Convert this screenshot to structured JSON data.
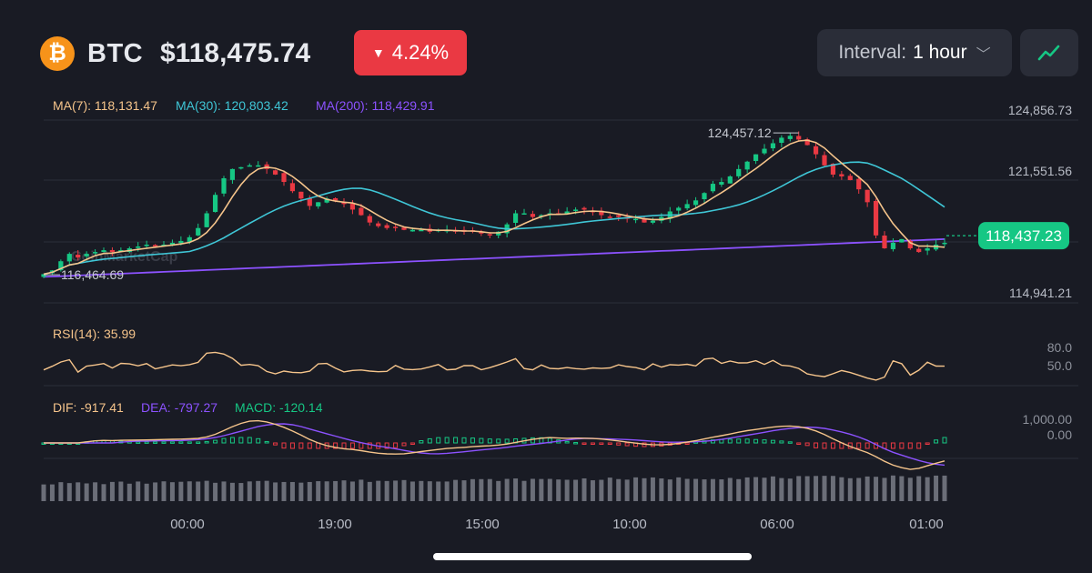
{
  "header": {
    "coin_icon": "bitcoin-icon",
    "coin_letter": "₿",
    "symbol": "BTC",
    "price": "$118,475.74",
    "change": "4.24%",
    "change_direction": "down",
    "change_color": "#ea3943",
    "interval_label": "Interval:",
    "interval_value": "1 hour",
    "chart_type_icon": "line-chart-icon"
  },
  "indicators": {
    "ma7": "MA(7): 118,131.47",
    "ma30": "MA(30): 120,803.42",
    "ma200": "MA(200): 118,429.91",
    "rsi": "RSI(14): 35.99",
    "dif": "DIF: -917.41",
    "dea": "DEA: -797.27",
    "macd": "MACD: -120.14"
  },
  "colors": {
    "up": "#16c784",
    "down": "#ea3943",
    "ma7": "#f5c48b",
    "ma30": "#3fc6d6",
    "ma200": "#8c52ff",
    "rsi": "#f5c48b",
    "volume": "#6b6e78"
  },
  "watermark": "CoinMarketCap",
  "chart_data": {
    "type": "candlestick",
    "x_ticks": [
      "00:00",
      "19:00",
      "15:00",
      "10:00",
      "06:00",
      "01:00"
    ],
    "y_ticks": [
      124856.73,
      121551.56,
      114941.21
    ],
    "y_tick_labels": [
      "124,856.73",
      "121,551.56",
      "114,941.21"
    ],
    "ylim": [
      114941.21,
      124856.73
    ],
    "high_label": "124,457.12",
    "high_value": 124457.12,
    "low_label": "116,464.69",
    "low_value": 116464.69,
    "current_price_label": "118,437.23",
    "current_price": 118437.23,
    "rsi_ticks": [
      "80.0",
      "50.0"
    ],
    "macd_ticks": [
      "1,000.00",
      "0.00"
    ],
    "close_series": [
      116500,
      116700,
      117200,
      117600,
      117400,
      117600,
      117700,
      117800,
      117700,
      117800,
      117900,
      118000,
      118100,
      118000,
      118100,
      118200,
      118300,
      118500,
      119000,
      119800,
      120800,
      121700,
      122200,
      122300,
      122400,
      122400,
      122200,
      121900,
      121500,
      121000,
      120600,
      120200,
      120400,
      120600,
      120500,
      120300,
      120000,
      119700,
      119300,
      119100,
      119000,
      119000,
      118900,
      118900,
      118900,
      118800,
      118900,
      118900,
      118800,
      118800,
      118800,
      118700,
      118600,
      118800,
      119200,
      119800,
      119800,
      119600,
      119700,
      119800,
      119800,
      119900,
      120000,
      120000,
      119900,
      119700,
      119600,
      119600,
      119500,
      119500,
      119300,
      119400,
      119600,
      119900,
      120100,
      120300,
      120500,
      120900,
      121400,
      121500,
      121800,
      122200,
      122600,
      123000,
      123300,
      123600,
      123900,
      124000,
      123800,
      123500,
      123000,
      122400,
      121900,
      121800,
      121600,
      121100,
      120400,
      118600,
      117900,
      118200,
      118400,
      117900,
      117700,
      117900,
      118100,
      118200
    ]
  }
}
